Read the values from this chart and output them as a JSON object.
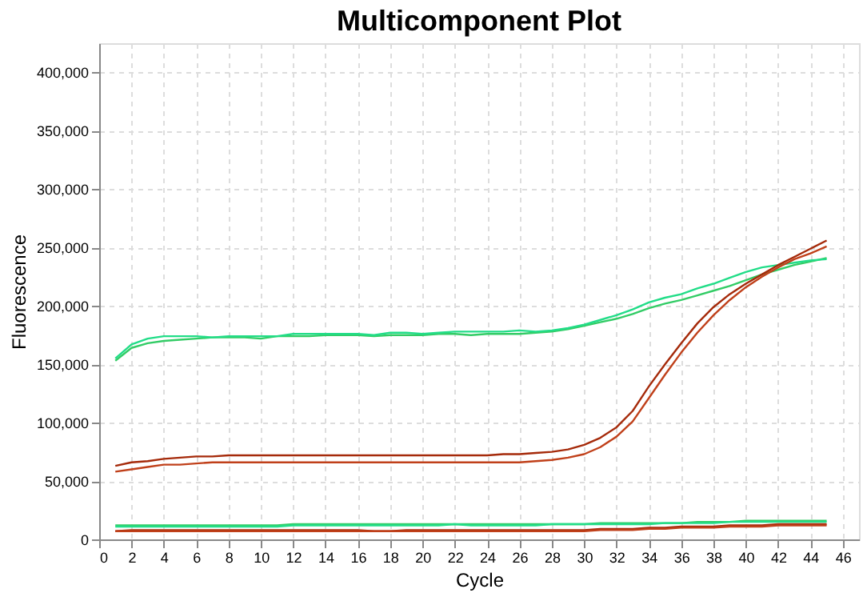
{
  "chart_data": {
    "type": "line",
    "title": "Multicomponent Plot",
    "xlabel": "Cycle",
    "ylabel": "Fluorescence",
    "x": [
      1,
      2,
      3,
      4,
      5,
      6,
      7,
      8,
      9,
      10,
      11,
      12,
      13,
      14,
      15,
      16,
      17,
      18,
      19,
      20,
      21,
      22,
      23,
      24,
      25,
      26,
      27,
      28,
      29,
      30,
      31,
      32,
      33,
      34,
      35,
      36,
      37,
      38,
      39,
      40,
      41,
      42,
      43,
      44,
      45
    ],
    "xlim": [
      0,
      47
    ],
    "xticks": [
      0,
      2,
      4,
      6,
      8,
      10,
      12,
      14,
      16,
      18,
      20,
      22,
      24,
      26,
      28,
      30,
      32,
      34,
      36,
      38,
      40,
      42,
      44,
      46
    ],
    "ylim": [
      0,
      425000
    ],
    "yticks": [
      0,
      {
        "value": 50000,
        "label": "50,000"
      },
      {
        "value": 100000,
        "label": "100,000"
      },
      {
        "value": 150000,
        "label": "150,000"
      },
      {
        "value": 200000,
        "label": "200,000"
      },
      {
        "value": 250000,
        "label": "250,000"
      },
      {
        "value": 300000,
        "label": "300,000"
      },
      {
        "value": 350000,
        "label": "350,000"
      },
      {
        "value": 400000,
        "label": "400,000"
      }
    ],
    "grid": true,
    "legend": false,
    "marker": "none",
    "line_style": "solid",
    "series": [
      {
        "color": "#33cc66",
        "values": [
          153000,
          164000,
          168000,
          170000,
          171000,
          172000,
          173000,
          173000,
          173000,
          172000,
          174000,
          174000,
          174000,
          175000,
          175000,
          175000,
          174000,
          175000,
          175000,
          175000,
          176000,
          176000,
          175000,
          176000,
          176000,
          176000,
          177000,
          178000,
          180000,
          183000,
          186000,
          189000,
          193000,
          198000,
          202000,
          205000,
          209000,
          213000,
          217000,
          222000,
          227000,
          231000,
          235000,
          238000,
          241000
        ]
      },
      {
        "color": "#22dd88",
        "values": [
          155000,
          167000,
          172000,
          174000,
          174000,
          174000,
          173000,
          174000,
          174000,
          174000,
          174000,
          176000,
          176000,
          176000,
          176000,
          176000,
          175000,
          177000,
          177000,
          176000,
          177000,
          178000,
          178000,
          178000,
          178000,
          179000,
          178000,
          179000,
          181000,
          184000,
          188000,
          192000,
          197000,
          203000,
          207000,
          210000,
          215000,
          219000,
          224000,
          229000,
          233000,
          235000,
          237000,
          239000,
          240000
        ]
      },
      {
        "color": "#a52a0a",
        "values": [
          63000,
          66000,
          67000,
          69000,
          70000,
          71000,
          71000,
          72000,
          72000,
          72000,
          72000,
          72000,
          72000,
          72000,
          72000,
          72000,
          72000,
          72000,
          72000,
          72000,
          72000,
          72000,
          72000,
          72000,
          73000,
          73000,
          74000,
          75000,
          77000,
          81000,
          87000,
          96000,
          110000,
          131000,
          150000,
          168000,
          185000,
          199000,
          210000,
          219000,
          227000,
          235000,
          242000,
          249000,
          256000
        ]
      },
      {
        "color": "#c0401a",
        "values": [
          58000,
          60000,
          62000,
          64000,
          64000,
          65000,
          66000,
          66000,
          66000,
          66000,
          66000,
          66000,
          66000,
          66000,
          66000,
          66000,
          66000,
          66000,
          66000,
          66000,
          66000,
          66000,
          66000,
          66000,
          66000,
          66000,
          67000,
          68000,
          70000,
          73000,
          79000,
          88000,
          101000,
          121000,
          141000,
          160000,
          177000,
          192000,
          205000,
          216000,
          225000,
          233000,
          240000,
          245000,
          251000
        ]
      },
      {
        "color": "#33cc66",
        "values": [
          12000,
          12000,
          12000,
          12000,
          12000,
          12000,
          12000,
          12000,
          12000,
          12000,
          12000,
          13000,
          13000,
          13000,
          13000,
          13000,
          13000,
          13000,
          13000,
          13000,
          13000,
          13000,
          13000,
          13000,
          13000,
          13000,
          13000,
          13000,
          13000,
          13000,
          14000,
          14000,
          14000,
          14000,
          14000,
          14000,
          15000,
          15000,
          15000,
          16000,
          16000,
          16000,
          16000,
          16000,
          16000
        ]
      },
      {
        "color": "#22dd88",
        "values": [
          11000,
          11000,
          11000,
          11000,
          11000,
          11000,
          11000,
          11000,
          11000,
          11000,
          11000,
          12000,
          12000,
          12000,
          12000,
          12000,
          12000,
          12000,
          12000,
          12000,
          12000,
          13000,
          12000,
          12000,
          12000,
          12000,
          12000,
          13000,
          13000,
          13000,
          13000,
          13000,
          13000,
          13000,
          14000,
          14000,
          14000,
          14000,
          15000,
          15000,
          15000,
          15000,
          15000,
          15000,
          15000
        ]
      },
      {
        "color": "#a52a0a",
        "values": [
          7000,
          8000,
          8000,
          8000,
          8000,
          8000,
          8000,
          8000,
          8000,
          8000,
          8000,
          8000,
          8000,
          8000,
          8000,
          8000,
          7000,
          7000,
          8000,
          8000,
          8000,
          8000,
          8000,
          8000,
          8000,
          8000,
          8000,
          8000,
          8000,
          8000,
          9000,
          9000,
          9000,
          10000,
          10000,
          11000,
          11000,
          11000,
          12000,
          12000,
          12000,
          13000,
          13000,
          13000,
          13000
        ]
      },
      {
        "color": "#c0401a",
        "values": [
          7000,
          7000,
          7000,
          7000,
          7000,
          7000,
          7000,
          7000,
          7000,
          7000,
          7000,
          7000,
          7000,
          7000,
          7000,
          7000,
          7000,
          7000,
          7000,
          7000,
          7000,
          7000,
          7000,
          7000,
          7000,
          7000,
          7000,
          7000,
          7000,
          7000,
          8000,
          8000,
          8000,
          9000,
          9000,
          10000,
          10000,
          10000,
          11000,
          11000,
          11000,
          12000,
          12000,
          12000,
          12000
        ]
      }
    ]
  }
}
